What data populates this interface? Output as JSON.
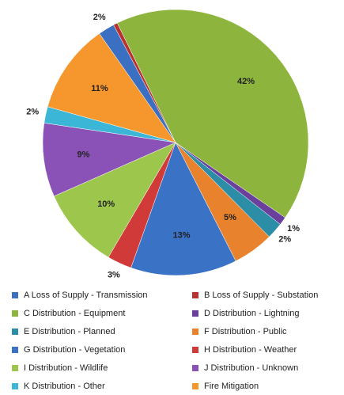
{
  "chart_data": {
    "type": "pie",
    "categories": [
      "A Loss of Supply - Transmission",
      "B Loss of Supply - Substation",
      "C Distribution - Equipment",
      "D Distribution - Lightning",
      "E Distribution - Planned",
      "F Distribution - Public",
      "G Distribution - Vegetation",
      "H Distribution - Weather",
      "I Distribution - Wildlife",
      "J Distribution - Unknown",
      "K Distribution - Other",
      "Fire Mitigation"
    ],
    "values": [
      2,
      0.5,
      42,
      1,
      2,
      5,
      13,
      3,
      10,
      9,
      2,
      11
    ],
    "value_labels": [
      "2%",
      null,
      "42%",
      "1%",
      "2%",
      "5%",
      "13%",
      "3%",
      "10%",
      "9%",
      "2%",
      "11%"
    ],
    "colors": [
      "#3b6fc2",
      "#b8322f",
      "#8db43c",
      "#6b3f9c",
      "#2c8ea6",
      "#e8822c",
      "#3a72c6",
      "#d03a38",
      "#9cc64c",
      "#8a52b6",
      "#3cb6d6",
      "#f5972c"
    ],
    "start_angle": -35,
    "legend": "bottom"
  }
}
